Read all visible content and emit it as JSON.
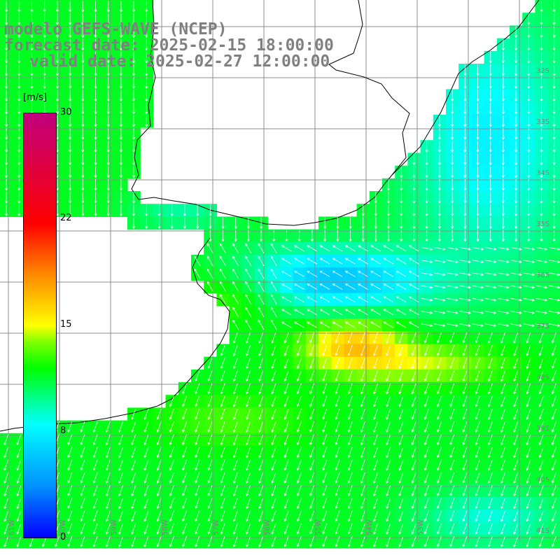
{
  "title": {
    "model": "modelo GEFS-WAVE (NCEP)",
    "forecast": "forecast date: 2025-02-15 18:00:00",
    "valid": "valid date: 2025-02-27 12:00:00"
  },
  "colorbar": {
    "unit": "[m/s]",
    "ticks": [
      "30",
      "22",
      "15",
      "8",
      "0"
    ],
    "tick_values": [
      30,
      22,
      15,
      8,
      0
    ]
  },
  "axes": {
    "lat_labels": [
      "32S",
      "33S",
      "34S",
      "35S",
      "36S",
      "37S",
      "38S",
      "39S",
      "40S",
      "41S"
    ],
    "lon_labels": [
      "61W",
      "60W",
      "59W",
      "58W",
      "57W",
      "56W",
      "55W",
      "54W",
      "53W"
    ]
  },
  "colors": {
    "grid": "#8c8c8c",
    "coast": "#000000",
    "arrow": "#ffffff",
    "label": "#808080"
  }
}
